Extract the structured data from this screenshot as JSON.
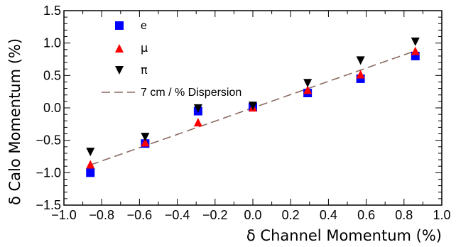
{
  "chart_data": {
    "type": "scatter",
    "xlabel": "δ Channel Momentum (%)",
    "ylabel": "δ Calo Momentum (%)",
    "xlim": [
      -1.0,
      1.0
    ],
    "ylim": [
      -1.5,
      1.5
    ],
    "x_ticks": [
      -1.0,
      -0.8,
      -0.6,
      -0.4,
      -0.2,
      0.0,
      0.2,
      0.4,
      0.6,
      0.8,
      1.0
    ],
    "x_tick_labels": [
      "−1.0",
      "−0.8",
      "−0.6",
      "−0.4",
      "−0.2",
      "0.0",
      "0.2",
      "0.4",
      "0.6",
      "0.8",
      "1.0"
    ],
    "y_ticks": [
      -1.5,
      -1.0,
      -0.5,
      0.0,
      0.5,
      1.0,
      1.5
    ],
    "y_tick_labels": [
      "−1.5",
      "−1.0",
      "−0.5",
      "0.0",
      "0.5",
      "1.0",
      "1.5"
    ],
    "grid": false,
    "legend_position": "top-left",
    "series": [
      {
        "name": "e",
        "marker": "square",
        "color": "#0000ff",
        "x": [
          -0.86,
          -0.57,
          -0.29,
          0.0,
          0.29,
          0.57,
          0.86
        ],
        "y": [
          -1.0,
          -0.55,
          -0.05,
          0.01,
          0.23,
          0.45,
          0.8
        ]
      },
      {
        "name": "μ",
        "marker": "triangle-up",
        "color": "#ff0000",
        "x": [
          -0.86,
          -0.57,
          -0.29,
          0.0,
          0.29,
          0.57,
          0.86
        ],
        "y": [
          -0.87,
          -0.53,
          -0.22,
          0.01,
          0.28,
          0.52,
          0.88
        ]
      },
      {
        "name": "π",
        "marker": "triangle-down",
        "color": "#000000",
        "x": [
          -0.86,
          -0.57,
          -0.29,
          0.0,
          0.29,
          0.57,
          0.86
        ],
        "y": [
          -0.68,
          -0.45,
          -0.01,
          0.03,
          0.38,
          0.73,
          1.02
        ]
      }
    ],
    "reference_line": {
      "name": "7 cm / % Dispersion",
      "style": "dashed",
      "color": "#8b6b61",
      "x": [
        -0.86,
        0.86
      ],
      "y": [
        -0.88,
        0.88
      ]
    }
  }
}
